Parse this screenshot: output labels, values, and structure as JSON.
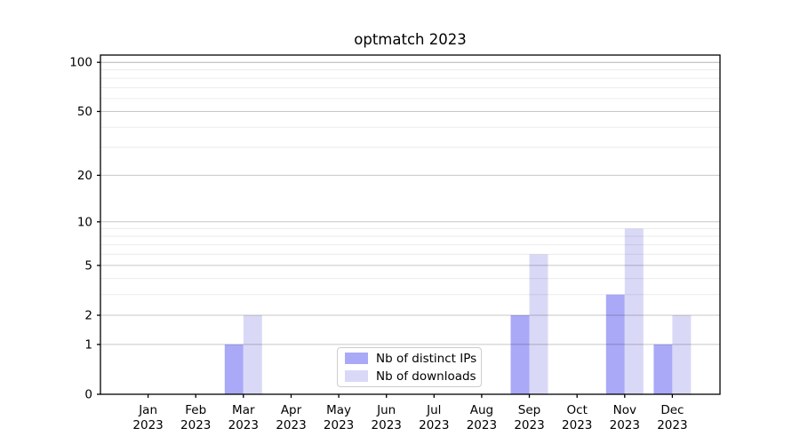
{
  "chart_data": {
    "type": "bar",
    "title": "optmatch 2023",
    "categories": [
      "Jan 2023",
      "Feb 2023",
      "Mar 2023",
      "Apr 2023",
      "May 2023",
      "Jun 2023",
      "Jul 2023",
      "Aug 2023",
      "Sep 2023",
      "Oct 2023",
      "Nov 2023",
      "Dec 2023"
    ],
    "series": [
      {
        "name": "Nb of distinct IPs",
        "color": "#a9a9f7",
        "values": [
          0,
          0,
          1,
          0,
          0,
          0,
          0,
          0,
          2,
          0,
          3,
          1
        ]
      },
      {
        "name": "Nb of downloads",
        "color": "#d9d9f7",
        "values": [
          0,
          0,
          2,
          0,
          0,
          0,
          0,
          0,
          6,
          0,
          9,
          2
        ]
      }
    ],
    "y_axis": {
      "scale": "log1p",
      "ticks": [
        0,
        1,
        2,
        5,
        10,
        20,
        50,
        100
      ],
      "minor_ticks": [
        3,
        4,
        6,
        7,
        8,
        9,
        30,
        40,
        60,
        70,
        80,
        90
      ],
      "ylim": [
        0,
        111
      ]
    },
    "xlabel": "",
    "ylabel": "",
    "grid": true,
    "legend_position": "bottom-center",
    "colors": {
      "spine": "#000000",
      "grid_major": "rgba(0,0,0,0.22)",
      "grid_minor": "rgba(0,0,0,0.08)",
      "grid_top": "rgba(0,0,0,0.30)",
      "background": "#ffffff"
    }
  }
}
